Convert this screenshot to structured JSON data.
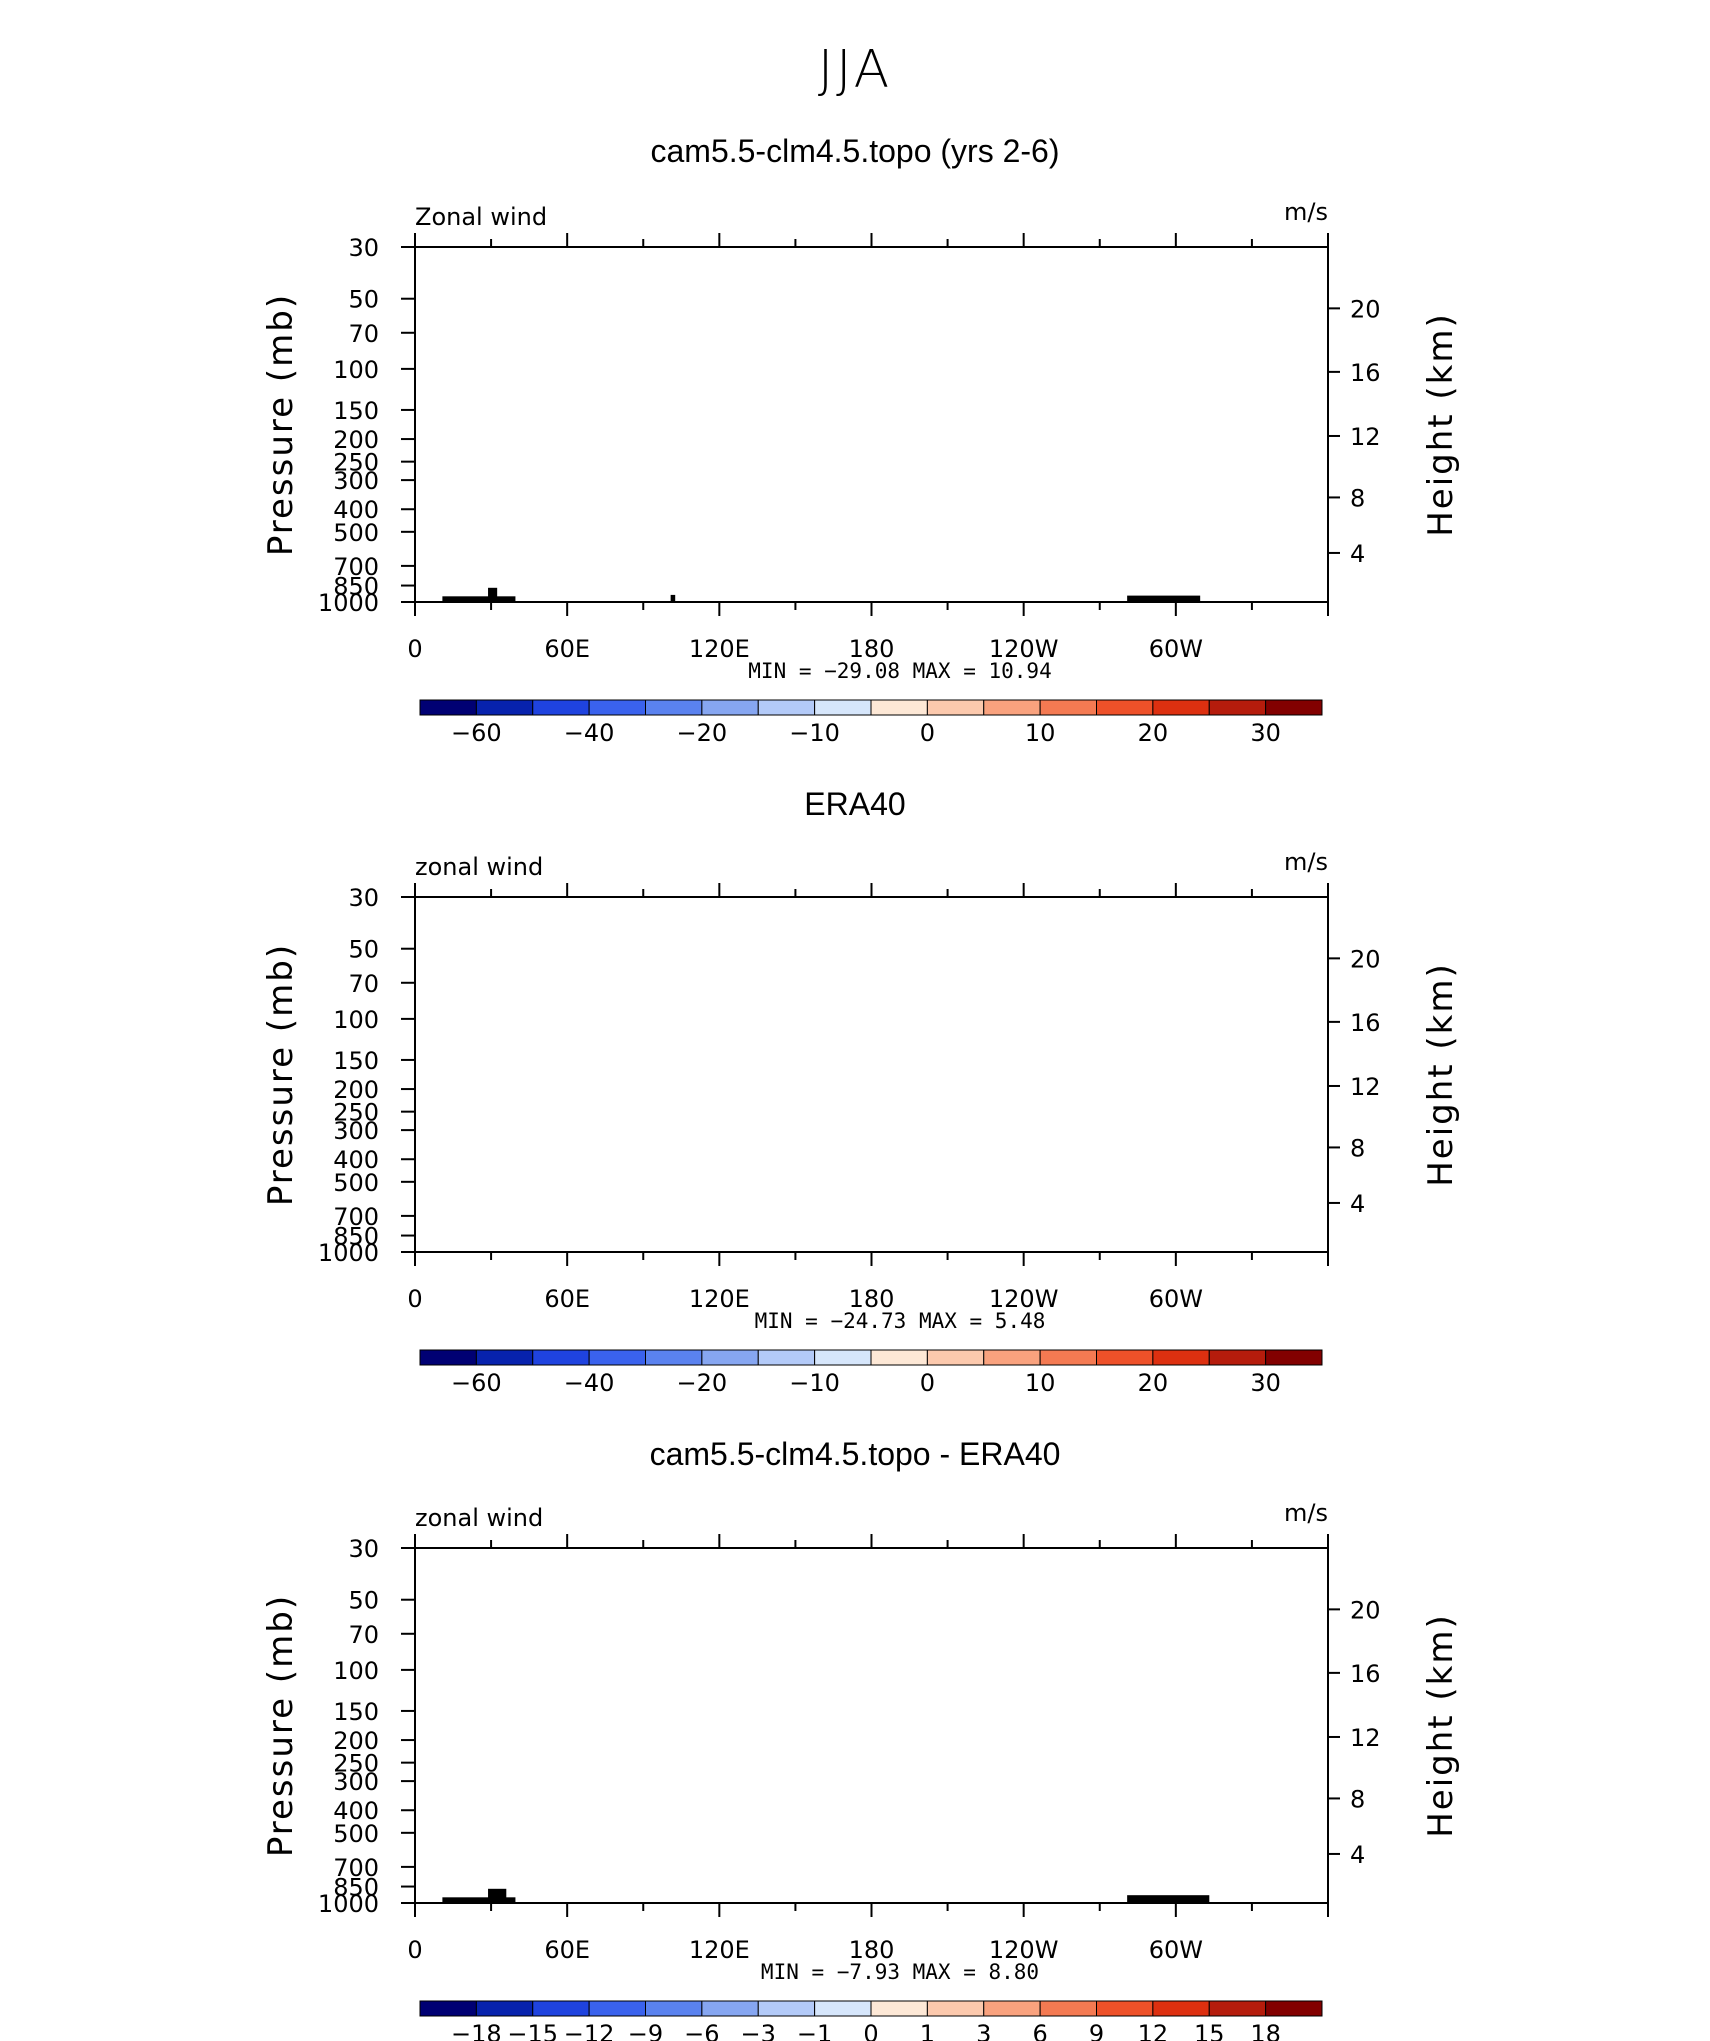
{
  "page": {
    "title": "JJA"
  },
  "chart_data": [
    {
      "type": "contour",
      "title": "cam5.5-clm4.5.topo (yrs 2-6)",
      "variable_label": "Zonal wind",
      "units": "m/s",
      "ylabel": "Pressure (mb)",
      "ylabel_right": "Height (km)",
      "x_ticks": [
        "0",
        "60E",
        "120E",
        "180",
        "120W",
        "60W"
      ],
      "y_ticks": [
        "30",
        "50",
        "70",
        "100",
        "150",
        "200",
        "250",
        "300",
        "400",
        "500",
        "700",
        "850",
        "1000"
      ],
      "y_right_ticks": [
        "20",
        "16",
        "12",
        "8",
        "4"
      ],
      "stats_text": "MIN = −29.08   MAX =   10.94",
      "min": -29.08,
      "max": 10.94,
      "colorbar_labels": [
        "−60",
        "−40",
        "−20",
        "−10",
        "0",
        "10",
        "20",
        "30"
      ],
      "colorbar_levels": [
        -70,
        -60,
        -50,
        -40,
        -30,
        -20,
        -15,
        -10,
        -5,
        0,
        5,
        10,
        15,
        20,
        25,
        30,
        35
      ],
      "ylim": [
        1000,
        30
      ],
      "xlim": [
        0,
        360
      ]
    },
    {
      "type": "contour",
      "title": "ERA40",
      "variable_label": "zonal wind",
      "units": "m/s",
      "ylabel": "Pressure (mb)",
      "ylabel_right": "Height (km)",
      "x_ticks": [
        "0",
        "60E",
        "120E",
        "180",
        "120W",
        "60W"
      ],
      "y_ticks": [
        "30",
        "50",
        "70",
        "100",
        "150",
        "200",
        "250",
        "300",
        "400",
        "500",
        "700",
        "850",
        "1000"
      ],
      "y_right_ticks": [
        "20",
        "16",
        "12",
        "8",
        "4"
      ],
      "stats_text": "MIN = −24.73   MAX =    5.48",
      "min": -24.73,
      "max": 5.48,
      "colorbar_labels": [
        "−60",
        "−40",
        "−20",
        "−10",
        "0",
        "10",
        "20",
        "30"
      ],
      "colorbar_levels": [
        -70,
        -60,
        -50,
        -40,
        -30,
        -20,
        -15,
        -10,
        -5,
        0,
        5,
        10,
        15,
        20,
        25,
        30,
        35
      ],
      "ylim": [
        1000,
        30
      ],
      "xlim": [
        0,
        360
      ]
    },
    {
      "type": "contour",
      "title": "cam5.5-clm4.5.topo - ERA40",
      "variable_label": "zonal wind",
      "units": "m/s",
      "ylabel": "Pressure (mb)",
      "ylabel_right": "Height (km)",
      "x_ticks": [
        "0",
        "60E",
        "120E",
        "180",
        "120W",
        "60W"
      ],
      "y_ticks": [
        "30",
        "50",
        "70",
        "100",
        "150",
        "200",
        "250",
        "300",
        "400",
        "500",
        "700",
        "850",
        "1000"
      ],
      "y_right_ticks": [
        "20",
        "16",
        "12",
        "8",
        "4"
      ],
      "stats_text": "MIN =   −7.93   MAX =    8.80",
      "min": -7.93,
      "max": 8.8,
      "colorbar_labels": [
        "−18",
        "−15",
        "−12",
        "−9",
        "−6",
        "−3",
        "−1",
        "0",
        "1",
        "3",
        "6",
        "9",
        "12",
        "15",
        "18"
      ],
      "colorbar_levels": [
        -21,
        -18,
        -15,
        -12,
        -9,
        -6,
        -3,
        -1,
        0,
        1,
        3,
        6,
        9,
        12,
        15,
        18,
        21
      ],
      "ylim": [
        1000,
        30
      ],
      "xlim": [
        0,
        360
      ]
    }
  ],
  "colors": {
    "scale": [
      "#000073",
      "#0722ad",
      "#1f43df",
      "#3a62ed",
      "#5a82ef",
      "#86a6f1",
      "#b3caf8",
      "#d6e6fb",
      "#fde8d6",
      "#fcc9ad",
      "#f9a27e",
      "#f47a52",
      "#ee5129",
      "#dd3010",
      "#b51c0c",
      "#820000"
    ]
  }
}
